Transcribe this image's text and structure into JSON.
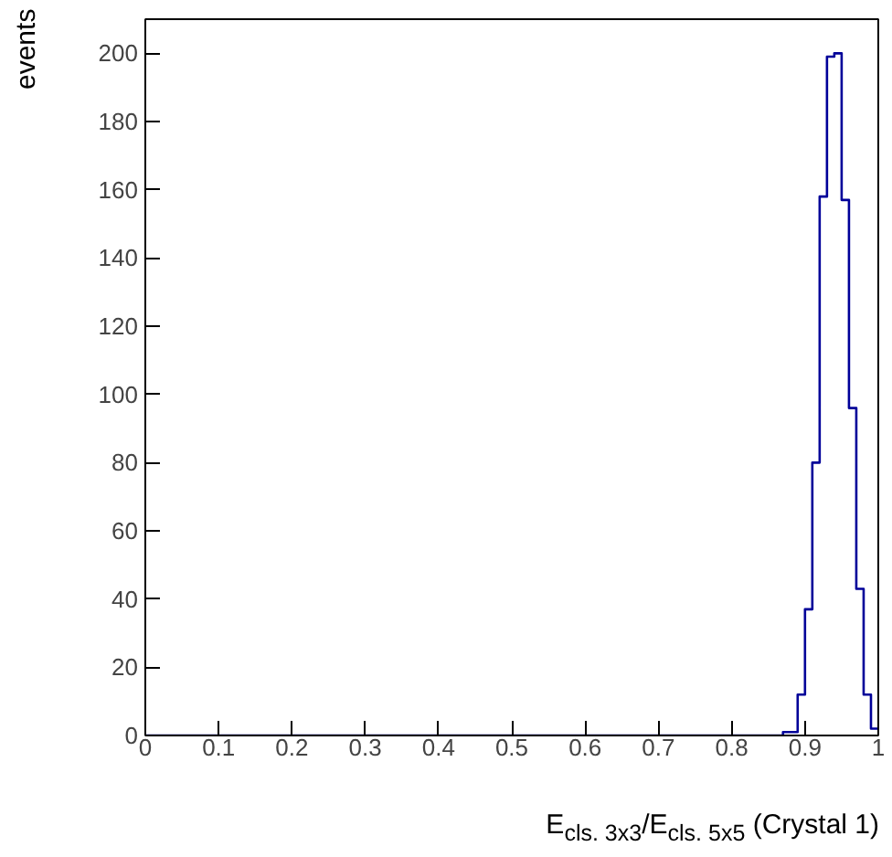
{
  "chart_data": {
    "type": "histogram",
    "xlabel": "E$_{cls. 3x3}$/E$_{cls. 5x5}$ (Crystal 1)",
    "ylabel": "events",
    "color": "#000099",
    "bins": [
      0,
      0.01,
      0.02,
      0.03,
      0.04,
      0.05,
      0.06,
      0.07,
      0.08,
      0.09,
      0.1,
      0.11,
      0.12,
      0.13,
      0.14,
      0.15,
      0.16,
      0.17,
      0.18,
      0.19,
      0.2,
      0.21,
      0.22,
      0.23,
      0.24,
      0.25,
      0.26,
      0.27,
      0.28,
      0.29,
      0.3,
      0.31,
      0.32,
      0.33,
      0.34,
      0.35,
      0.36,
      0.37,
      0.38,
      0.39,
      0.4,
      0.41,
      0.42,
      0.43,
      0.44,
      0.45,
      0.46,
      0.47,
      0.48,
      0.49,
      0.5,
      0.51,
      0.52,
      0.53,
      0.54,
      0.55,
      0.56,
      0.57,
      0.58,
      0.59,
      0.6,
      0.61,
      0.62,
      0.63,
      0.64,
      0.65,
      0.66,
      0.67,
      0.68,
      0.69,
      0.7,
      0.71,
      0.72,
      0.73,
      0.74,
      0.75,
      0.76,
      0.77,
      0.78,
      0.79,
      0.8,
      0.81,
      0.82,
      0.83,
      0.84,
      0.85,
      0.86,
      0.87,
      0.88,
      0.89,
      0.9,
      0.91,
      0.92,
      0.93,
      0.94,
      0.95,
      0.96,
      0.97,
      0.98,
      0.99,
      1
    ],
    "values": [
      0,
      0,
      0,
      0,
      0,
      0,
      0,
      0,
      0,
      0,
      0,
      0,
      0,
      0,
      0,
      0,
      0,
      0,
      0,
      0,
      0,
      0,
      0,
      0,
      0,
      0,
      0,
      0,
      0,
      0,
      0,
      0,
      0,
      0,
      0,
      0,
      0,
      0,
      0,
      0,
      0,
      0,
      0,
      0,
      0,
      0,
      0,
      0,
      0,
      0,
      0,
      0,
      0,
      0,
      0,
      0,
      0,
      0,
      0,
      0,
      0,
      0,
      0,
      0,
      0,
      0,
      0,
      0,
      0,
      0,
      0,
      0,
      0,
      0,
      0,
      0,
      0,
      0,
      0,
      0,
      0,
      0,
      0,
      0,
      0,
      0,
      0,
      1,
      1,
      12,
      37,
      80,
      158,
      199,
      200,
      157,
      96,
      43,
      12,
      2
    ],
    "xlim": [
      0,
      1
    ],
    "ylim": [
      0,
      210
    ],
    "xticks": [
      0,
      0.1,
      0.2,
      0.3,
      0.4,
      0.5,
      0.6,
      0.7,
      0.8,
      0.9,
      1
    ],
    "yticks": [
      0,
      20,
      40,
      60,
      80,
      100,
      120,
      140,
      160,
      180,
      200
    ],
    "grid": false
  }
}
